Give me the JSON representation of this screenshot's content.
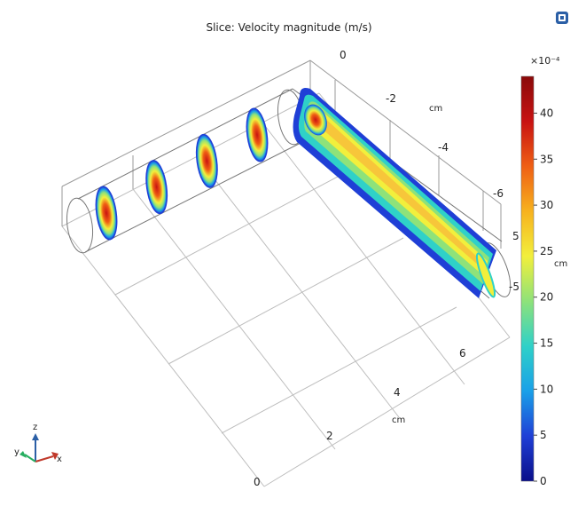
{
  "chart_data": {
    "type": "heatmap",
    "title": "Slice: Velocity magnitude (m/s)",
    "colorbar": {
      "multiplier": "×10⁻⁴",
      "ticks": [
        0,
        5,
        10,
        15,
        20,
        25,
        30,
        35,
        40
      ],
      "range": [
        0,
        44
      ],
      "colors": [
        "#0a0f8a",
        "#1f3fd6",
        "#1aa0e8",
        "#2fd1c8",
        "#8ee27a",
        "#f2ef3c",
        "#f7b21e",
        "#ef5f14",
        "#c81212",
        "#8a0a0a"
      ]
    },
    "axes": {
      "x": {
        "ticks": [
          "0",
          "2",
          "4",
          "6"
        ],
        "unit": "cm"
      },
      "y": {
        "ticks": [
          "0",
          "-2",
          "-4",
          "-6"
        ],
        "unit": "cm"
      },
      "z": {
        "ticks": [
          "5",
          "-5"
        ],
        "unit": "cm"
      }
    },
    "triad": {
      "x": "x",
      "y": "y",
      "z": "z"
    },
    "slices": 5
  },
  "ui": {
    "corner_icon": "camera-icon"
  }
}
